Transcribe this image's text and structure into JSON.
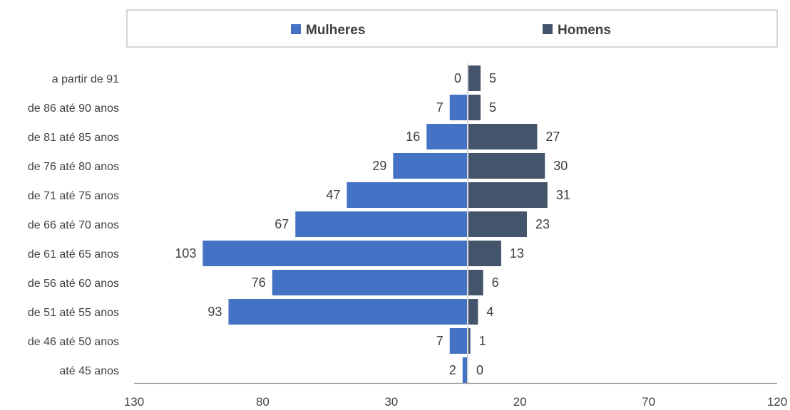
{
  "chart_data": {
    "type": "bar",
    "orientation": "horizontal",
    "layout": "population-pyramid",
    "categories": [
      "a partir de 91",
      "de 86 até 90 anos",
      "de 81 até 85 anos",
      "de 76 até 80 anos",
      "de 71 até 75 anos",
      "de 66 até 70 anos",
      "de 61 até 65 anos",
      "de 56 até 60 anos",
      "de 51 até 55 anos",
      "de 46 até 50 anos",
      "até 45 anos"
    ],
    "series": [
      {
        "name": "Mulheres",
        "color": "#4472C4",
        "side": "left",
        "values": [
          0,
          7,
          16,
          29,
          47,
          67,
          103,
          76,
          93,
          7,
          2
        ]
      },
      {
        "name": "Homens",
        "color": "#44546A",
        "side": "right",
        "values": [
          5,
          5,
          27,
          30,
          31,
          23,
          13,
          6,
          4,
          1,
          0
        ]
      }
    ],
    "x_tick_labels": [
      "130",
      "80",
      "30",
      "20",
      "70",
      "120"
    ],
    "xlim": [
      -130,
      120
    ],
    "legend_position": "top",
    "grid": false,
    "title": "",
    "xlabel": "",
    "ylabel": ""
  }
}
